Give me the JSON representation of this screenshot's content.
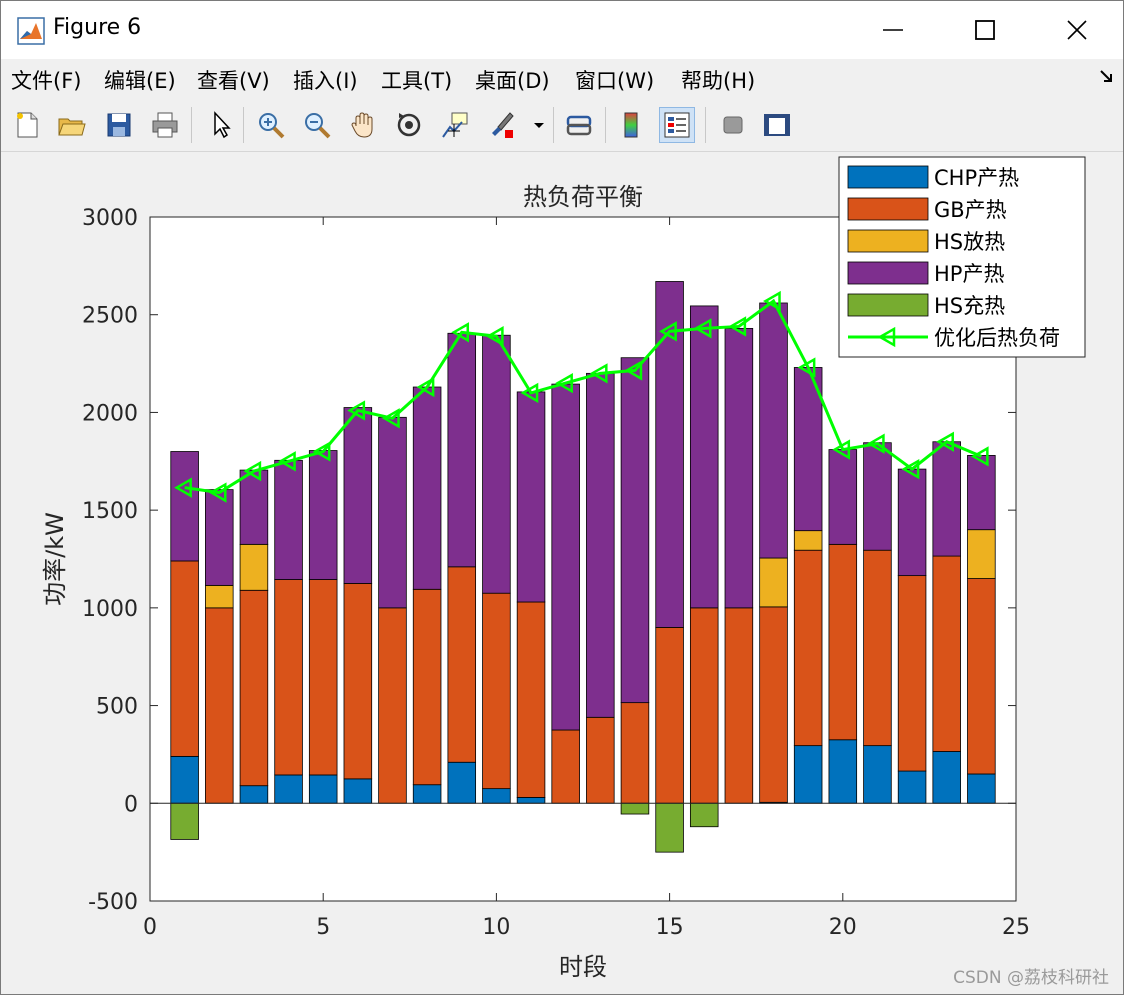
{
  "window": {
    "title": "Figure 6"
  },
  "menu": [
    "文件(F)",
    "编辑(E)",
    "查看(V)",
    "插入(I)",
    "工具(T)",
    "桌面(D)",
    "窗口(W)",
    "帮助(H)"
  ],
  "toolbar": {
    "items": [
      "new-figure-icon",
      "open-file-icon",
      "save-icon",
      "print-icon",
      "pointer-icon",
      "zoom-in-icon",
      "zoom-out-icon",
      "pan-icon",
      "rotate-3d-icon",
      "data-cursor-icon",
      "brush-icon",
      "link-icon",
      "colorbar-icon",
      "legend-icon",
      "hide-plot-tools-icon",
      "show-plot-tools-icon"
    ]
  },
  "watermark": "CSDN @荔枝科研社",
  "chart_data": {
    "type": "bar",
    "stacked": true,
    "title": "热负荷平衡",
    "xlabel": "时段",
    "ylabel": "功率/kW",
    "xlim": [
      0,
      25
    ],
    "ylim": [
      -500,
      3000
    ],
    "xticks": [
      0,
      5,
      10,
      15,
      20,
      25
    ],
    "yticks": [
      -500,
      0,
      500,
      1000,
      1500,
      2000,
      2500,
      3000
    ],
    "grid": false,
    "legend_position": "top-right",
    "x": [
      1,
      2,
      3,
      4,
      5,
      6,
      7,
      8,
      9,
      10,
      11,
      12,
      13,
      14,
      15,
      16,
      17,
      18,
      19,
      20,
      21,
      22,
      23,
      24
    ],
    "series": [
      {
        "name": "CHP产热",
        "color": "#0072BD",
        "values": [
          240,
          0,
          90,
          145,
          145,
          125,
          0,
          95,
          210,
          75,
          30,
          0,
          0,
          0,
          0,
          0,
          0,
          5,
          295,
          325,
          295,
          165,
          265,
          150
        ]
      },
      {
        "name": "GB产热",
        "color": "#D95319",
        "values": [
          1000,
          1000,
          1000,
          1000,
          1000,
          1000,
          1000,
          1000,
          1000,
          1000,
          1000,
          375,
          440,
          515,
          900,
          1000,
          1000,
          1000,
          1000,
          1000,
          1000,
          1000,
          1000,
          1000
        ]
      },
      {
        "name": "HS放热",
        "color": "#EDB120",
        "values": [
          0,
          115,
          235,
          0,
          0,
          0,
          0,
          0,
          0,
          0,
          0,
          0,
          0,
          0,
          0,
          0,
          0,
          250,
          100,
          0,
          0,
          0,
          0,
          250
        ]
      },
      {
        "name": "HP产热",
        "color": "#7E2F8E",
        "values": [
          560,
          490,
          380,
          610,
          660,
          900,
          975,
          1035,
          1195,
          1320,
          1075,
          1770,
          1760,
          1765,
          1770,
          1545,
          1430,
          1305,
          835,
          485,
          550,
          545,
          585,
          380
        ]
      },
      {
        "name": "HS充热",
        "color": "#77AC30",
        "values": [
          -185,
          0,
          0,
          0,
          0,
          0,
          0,
          0,
          0,
          0,
          0,
          0,
          0,
          -55,
          -250,
          -120,
          0,
          0,
          0,
          0,
          0,
          0,
          0,
          0
        ]
      }
    ],
    "line": {
      "name": "优化后热负荷",
      "color": "#00FF00",
      "marker": "triangle-left",
      "values": [
        1615,
        1590,
        1700,
        1750,
        1800,
        2010,
        1970,
        2130,
        2410,
        2390,
        2100,
        2150,
        2200,
        2215,
        2415,
        2430,
        2440,
        2570,
        2230,
        1810,
        1840,
        1710,
        1850,
        1775
      ]
    }
  }
}
